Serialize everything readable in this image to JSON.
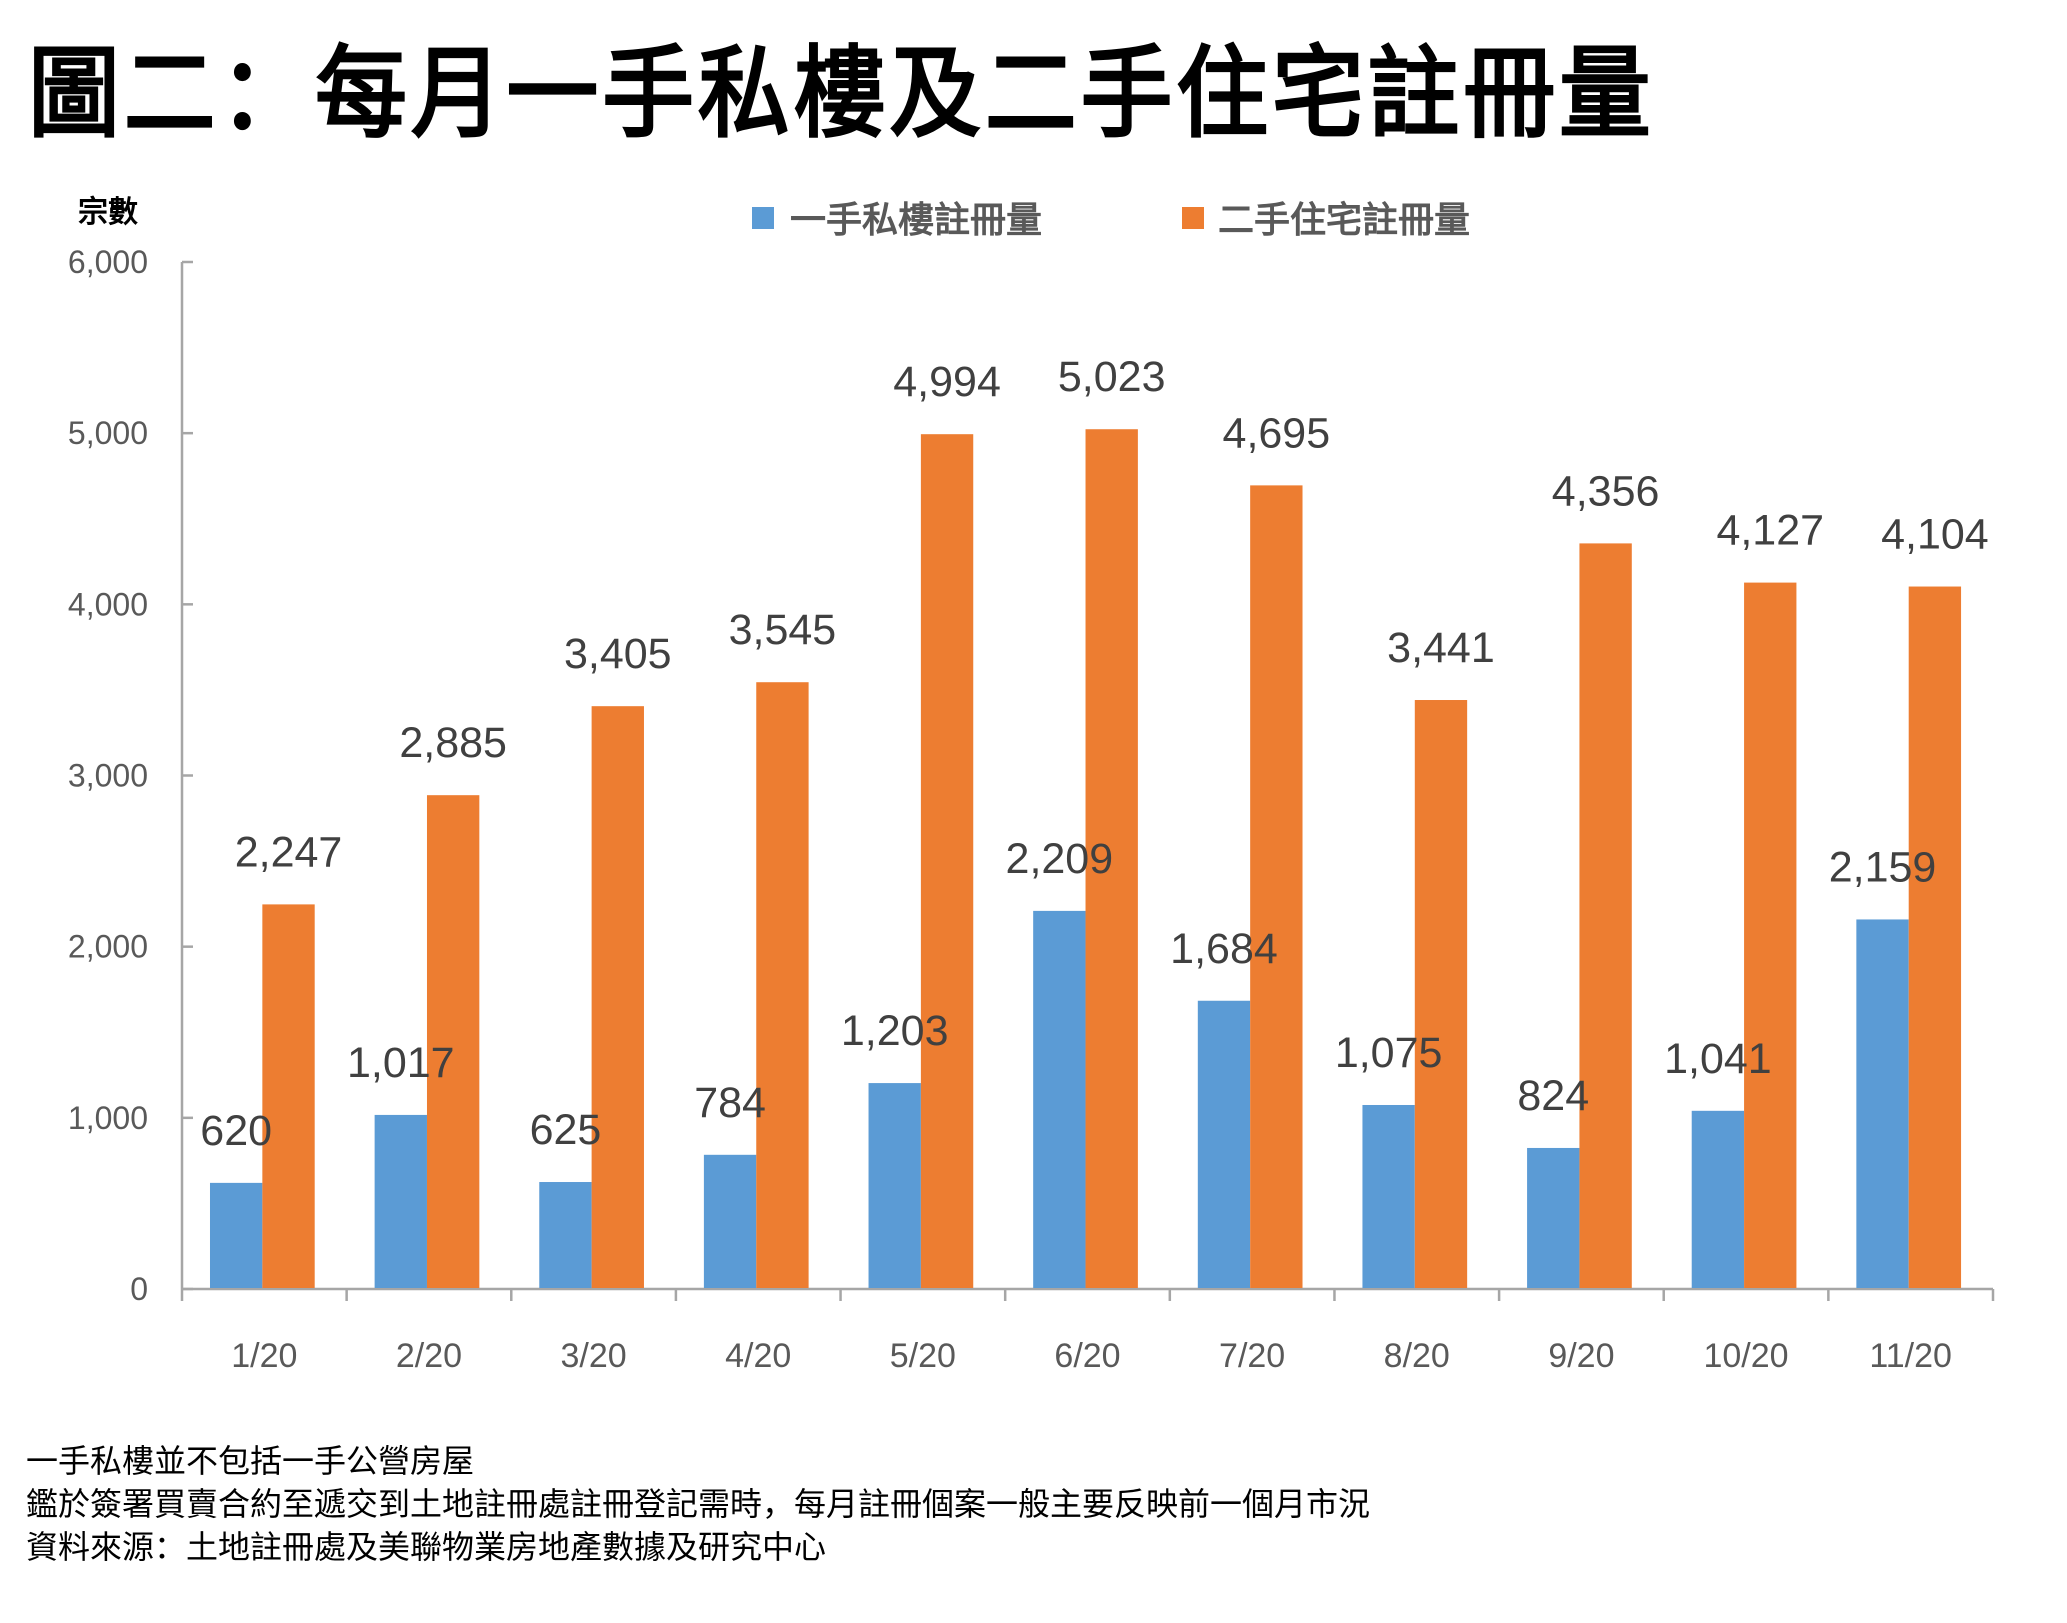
{
  "title": "圖二：每月一手私樓及二手住宅註冊量",
  "chart_data": {
    "type": "bar",
    "title": "圖二：每月一手私樓及二手住宅註冊量",
    "xlabel": "",
    "ylabel": "宗數",
    "ylim": [
      0,
      6000
    ],
    "yticks": [
      0,
      1000,
      2000,
      3000,
      4000,
      5000,
      6000
    ],
    "ytick_labels": [
      "0",
      "1,000",
      "2,000",
      "3,000",
      "4,000",
      "5,000",
      "6,000"
    ],
    "grid": false,
    "legend_position": "top-center",
    "categories": [
      "1/20",
      "2/20",
      "3/20",
      "4/20",
      "5/20",
      "6/20",
      "7/20",
      "8/20",
      "9/20",
      "10/20",
      "11/20"
    ],
    "series": [
      {
        "name": "一手私樓註冊量",
        "color": "#5B9BD5",
        "values": [
          620,
          1017,
          625,
          784,
          1203,
          2209,
          1684,
          1075,
          824,
          1041,
          2159
        ],
        "labels": [
          "620",
          "1,017",
          "625",
          "784",
          "1,203",
          "2,209",
          "1,684",
          "1,075",
          "824",
          "1,041",
          "2,159"
        ]
      },
      {
        "name": "二手住宅註冊量",
        "color": "#ED7D31",
        "values": [
          2247,
          2885,
          3405,
          3545,
          4994,
          5023,
          4695,
          3441,
          4356,
          4127,
          4104
        ],
        "labels": [
          "2,247",
          "2,885",
          "3,405",
          "3,545",
          "4,994",
          "5,023",
          "4,695",
          "3,441",
          "4,356",
          "4,127",
          "4,104"
        ]
      }
    ]
  },
  "footnotes": [
    "一手私樓並不包括一手公營房屋",
    "鑑於簽署買賣合約至遞交到土地註冊處註冊登記需時，每月註冊個案一般主要反映前一個月市況",
    "資料來源：土地註冊處及美聯物業房地產數據及研究中心"
  ]
}
